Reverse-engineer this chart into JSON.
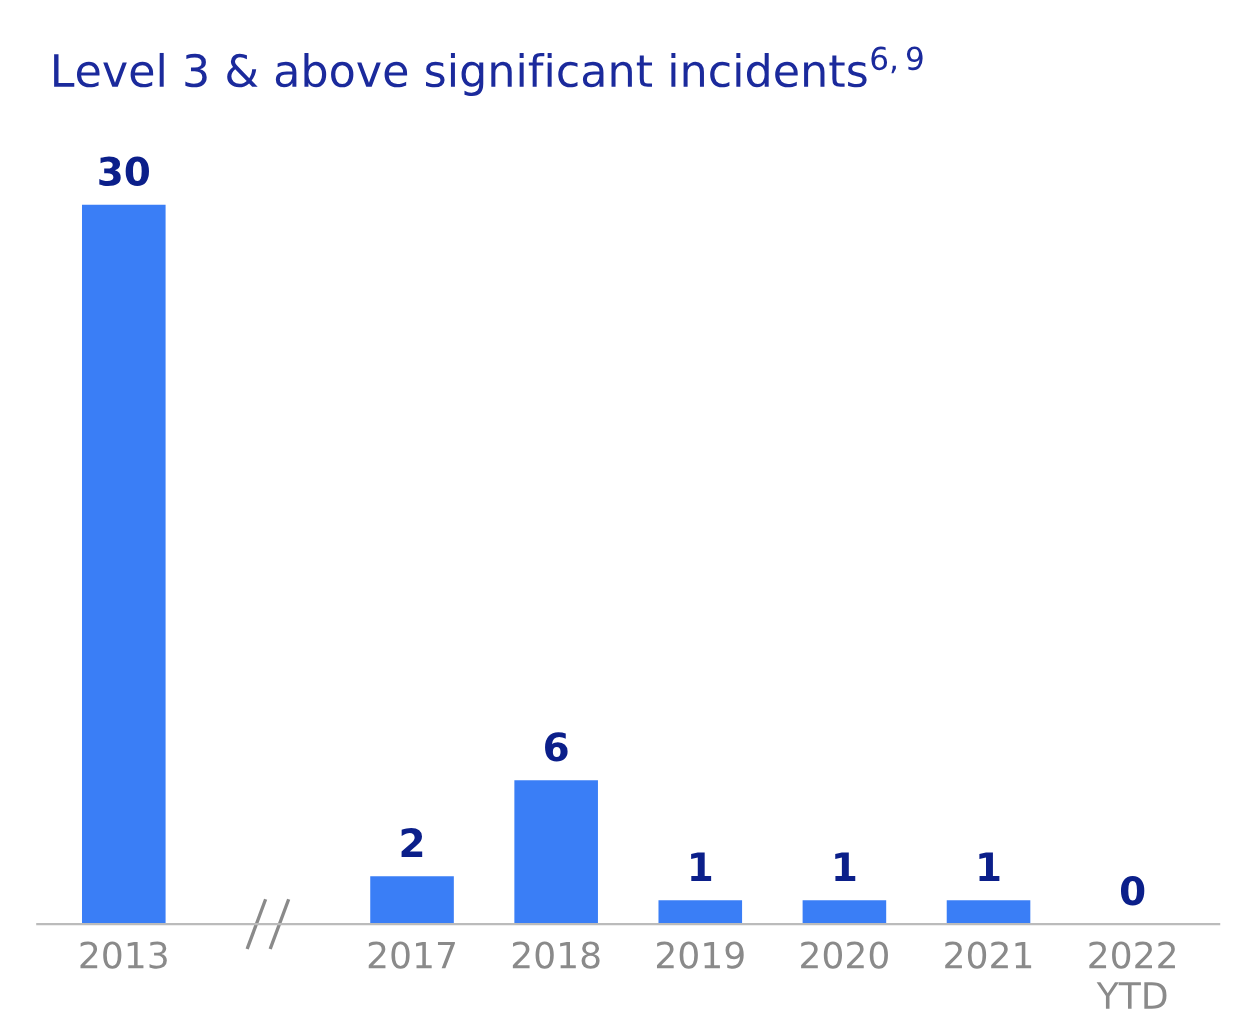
{
  "chart_data": {
    "type": "bar",
    "title": "Level 3 & above significant incidents$^{6,9}$",
    "categories": [
      "2013",
      null,
      "2017",
      "2018",
      "2019",
      "2020",
      "2021",
      "2022\nYTD"
    ],
    "values": [
      30,
      null,
      2,
      6,
      1,
      1,
      1,
      0
    ],
    "color": "#3a7ef6",
    "data_labels": true,
    "grid": false,
    "legend": false
  }
}
